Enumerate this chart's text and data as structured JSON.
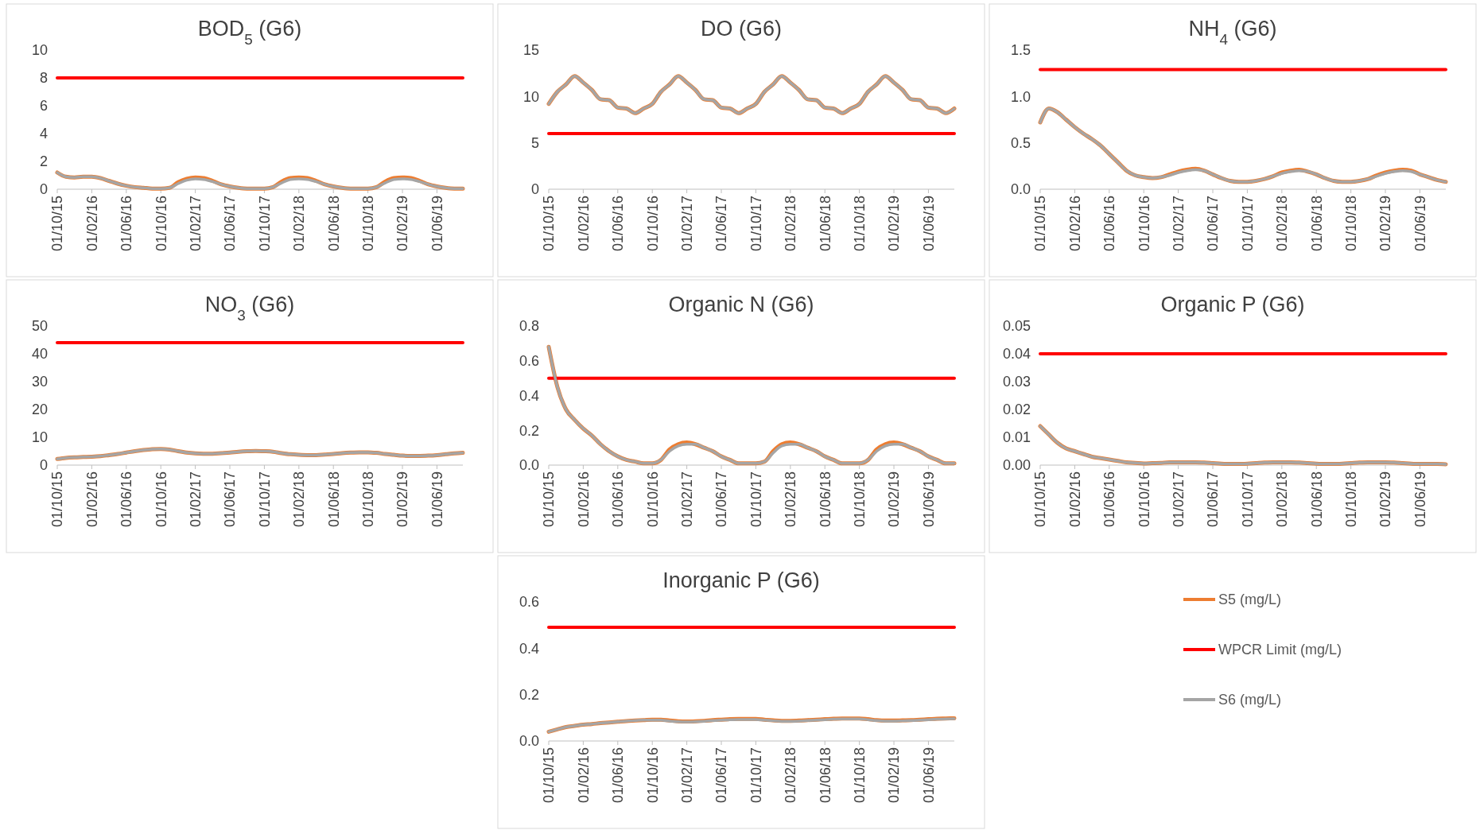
{
  "chart_data": [
    {
      "type": "line",
      "title": "BOD$_{5}$ (G6)",
      "categories": [
        "01/10/15",
        null,
        null,
        null,
        "01/02/16",
        null,
        null,
        null,
        "01/06/16",
        null,
        null,
        null,
        "01/10/16",
        null,
        null,
        null,
        "01/02/17",
        null,
        null,
        null,
        "01/06/17",
        null,
        null,
        null,
        "01/10/17",
        null,
        null,
        null,
        "01/02/18",
        null,
        null,
        null,
        "01/06/18",
        null,
        null,
        null,
        "01/10/18",
        null,
        null,
        null,
        "01/02/19",
        null,
        null,
        null,
        "01/06/19",
        null,
        null,
        null
      ],
      "ylim": [
        0,
        10
      ],
      "yticks": [
        0,
        2,
        4,
        6,
        8,
        10
      ],
      "series": [
        {
          "color": "#ed7d31",
          "values": [
            1.2,
            0.9,
            0.85,
            0.9,
            0.9,
            0.8,
            0.6,
            0.4,
            0.25,
            0.15,
            0.1,
            0.05,
            0.05,
            0.1,
            0.5,
            0.75,
            0.85,
            0.8,
            0.6,
            0.35,
            0.2,
            0.1,
            0.05,
            0.05,
            0.05,
            0.15,
            0.55,
            0.8,
            0.85,
            0.8,
            0.6,
            0.35,
            0.2,
            0.1,
            0.05,
            0.05,
            0.05,
            0.15,
            0.55,
            0.8,
            0.85,
            0.8,
            0.6,
            0.35,
            0.2,
            0.1,
            0.05,
            0.05
          ]
        },
        {
          "color": "#ff0000",
          "values": [
            8,
            8,
            8,
            8,
            8,
            8,
            8,
            8,
            8,
            8,
            8,
            8,
            8,
            8,
            8,
            8,
            8,
            8,
            8,
            8,
            8,
            8,
            8,
            8,
            8,
            8,
            8,
            8,
            8,
            8,
            8,
            8,
            8,
            8,
            8,
            8,
            8,
            8,
            8,
            8,
            8,
            8,
            8,
            8,
            8,
            8,
            8,
            8
          ]
        },
        {
          "color": "#a5a5a5",
          "values": [
            1.2,
            0.9,
            0.85,
            0.9,
            0.9,
            0.8,
            0.6,
            0.4,
            0.25,
            0.15,
            0.1,
            0.05,
            0.05,
            0.1,
            0.4,
            0.65,
            0.75,
            0.7,
            0.55,
            0.35,
            0.2,
            0.1,
            0.05,
            0.05,
            0.05,
            0.15,
            0.45,
            0.7,
            0.75,
            0.7,
            0.55,
            0.35,
            0.2,
            0.1,
            0.05,
            0.05,
            0.05,
            0.15,
            0.45,
            0.7,
            0.75,
            0.7,
            0.55,
            0.35,
            0.2,
            0.1,
            0.05,
            0.05
          ]
        }
      ]
    },
    {
      "type": "line",
      "title": "DO (G6)",
      "categories": [
        "01/10/15",
        null,
        null,
        null,
        "01/02/16",
        null,
        null,
        null,
        "01/06/16",
        null,
        null,
        null,
        "01/10/16",
        null,
        null,
        null,
        "01/02/17",
        null,
        null,
        null,
        "01/06/17",
        null,
        null,
        null,
        "01/10/17",
        null,
        null,
        null,
        "01/02/18",
        null,
        null,
        null,
        "01/06/18",
        null,
        null,
        null,
        "01/10/18",
        null,
        null,
        null,
        "01/02/19",
        null,
        null,
        null,
        "01/06/19",
        null,
        null,
        null
      ],
      "ylim": [
        0,
        15
      ],
      "yticks": [
        0,
        5,
        10,
        15
      ],
      "series": [
        {
          "color": "#ed7d31",
          "values": [
            9.2,
            10.5,
            11.3,
            12.2,
            11.5,
            10.7,
            9.7,
            9.6,
            8.8,
            8.7,
            8.2,
            8.7,
            9.2,
            10.5,
            11.3,
            12.2,
            11.5,
            10.7,
            9.7,
            9.6,
            8.8,
            8.7,
            8.2,
            8.7,
            9.2,
            10.5,
            11.3,
            12.2,
            11.5,
            10.7,
            9.7,
            9.6,
            8.8,
            8.7,
            8.2,
            8.7,
            9.2,
            10.5,
            11.3,
            12.2,
            11.5,
            10.7,
            9.7,
            9.6,
            8.8,
            8.7,
            8.2,
            8.7
          ]
        },
        {
          "color": "#ff0000",
          "values": [
            6,
            6,
            6,
            6,
            6,
            6,
            6,
            6,
            6,
            6,
            6,
            6,
            6,
            6,
            6,
            6,
            6,
            6,
            6,
            6,
            6,
            6,
            6,
            6,
            6,
            6,
            6,
            6,
            6,
            6,
            6,
            6,
            6,
            6,
            6,
            6,
            6,
            6,
            6,
            6,
            6,
            6,
            6,
            6,
            6,
            6,
            6,
            6
          ]
        },
        {
          "color": "#a5a5a5",
          "values": [
            9.2,
            10.5,
            11.3,
            12.2,
            11.5,
            10.7,
            9.7,
            9.6,
            8.8,
            8.7,
            8.2,
            8.7,
            9.2,
            10.5,
            11.3,
            12.2,
            11.5,
            10.7,
            9.7,
            9.6,
            8.8,
            8.7,
            8.2,
            8.7,
            9.2,
            10.5,
            11.3,
            12.2,
            11.5,
            10.7,
            9.7,
            9.6,
            8.8,
            8.7,
            8.2,
            8.7,
            9.2,
            10.5,
            11.3,
            12.2,
            11.5,
            10.7,
            9.7,
            9.6,
            8.8,
            8.7,
            8.2,
            8.7
          ]
        }
      ]
    },
    {
      "type": "line",
      "title": "NH$_{4}$ (G6)",
      "categories": [
        "01/10/15",
        null,
        null,
        null,
        "01/02/16",
        null,
        null,
        null,
        "01/06/16",
        null,
        null,
        null,
        "01/10/16",
        null,
        null,
        null,
        "01/02/17",
        null,
        null,
        null,
        "01/06/17",
        null,
        null,
        null,
        "01/10/17",
        null,
        null,
        null,
        "01/02/18",
        null,
        null,
        null,
        "01/06/18",
        null,
        null,
        null,
        "01/10/18",
        null,
        null,
        null,
        "01/02/19",
        null,
        null,
        null,
        "01/06/19",
        null,
        null,
        null
      ],
      "ylim": [
        0,
        1.5
      ],
      "yticks": [
        {
          "value": 0,
          "label": "0.0"
        },
        {
          "value": 0.5,
          "label": "0.5"
        },
        {
          "value": 1,
          "label": "1.0"
        },
        {
          "value": 1.5,
          "label": "1.5"
        }
      ],
      "series": [
        {
          "color": "#ed7d31",
          "values": [
            0.72,
            0.87,
            0.83,
            0.75,
            0.67,
            0.6,
            0.54,
            0.47,
            0.38,
            0.29,
            0.2,
            0.15,
            0.13,
            0.12,
            0.13,
            0.16,
            0.19,
            0.21,
            0.22,
            0.2,
            0.16,
            0.12,
            0.09,
            0.08,
            0.08,
            0.09,
            0.11,
            0.14,
            0.18,
            0.2,
            0.21,
            0.19,
            0.16,
            0.12,
            0.09,
            0.08,
            0.08,
            0.09,
            0.11,
            0.15,
            0.18,
            0.2,
            0.21,
            0.2,
            0.16,
            0.13,
            0.1,
            0.08
          ]
        },
        {
          "color": "#ff0000",
          "values": [
            1.29,
            1.29,
            1.29,
            1.29,
            1.29,
            1.29,
            1.29,
            1.29,
            1.29,
            1.29,
            1.29,
            1.29,
            1.29,
            1.29,
            1.29,
            1.29,
            1.29,
            1.29,
            1.29,
            1.29,
            1.29,
            1.29,
            1.29,
            1.29,
            1.29,
            1.29,
            1.29,
            1.29,
            1.29,
            1.29,
            1.29,
            1.29,
            1.29,
            1.29,
            1.29,
            1.29,
            1.29,
            1.29,
            1.29,
            1.29,
            1.29,
            1.29,
            1.29,
            1.29,
            1.29,
            1.29,
            1.29,
            1.29
          ]
        },
        {
          "color": "#a5a5a5",
          "values": [
            0.72,
            0.87,
            0.83,
            0.75,
            0.67,
            0.6,
            0.54,
            0.47,
            0.38,
            0.29,
            0.2,
            0.15,
            0.13,
            0.12,
            0.13,
            0.15,
            0.18,
            0.2,
            0.21,
            0.2,
            0.16,
            0.12,
            0.09,
            0.08,
            0.08,
            0.09,
            0.11,
            0.14,
            0.17,
            0.19,
            0.2,
            0.19,
            0.16,
            0.12,
            0.09,
            0.08,
            0.08,
            0.09,
            0.11,
            0.14,
            0.17,
            0.19,
            0.2,
            0.19,
            0.16,
            0.13,
            0.1,
            0.08
          ]
        }
      ]
    },
    {
      "type": "line",
      "title": "NO$_{3}$ (G6)",
      "categories": [
        "01/10/15",
        null,
        null,
        null,
        "01/02/16",
        null,
        null,
        null,
        "01/06/16",
        null,
        null,
        null,
        "01/10/16",
        null,
        null,
        null,
        "01/02/17",
        null,
        null,
        null,
        "01/06/17",
        null,
        null,
        null,
        "01/10/17",
        null,
        null,
        null,
        "01/02/18",
        null,
        null,
        null,
        "01/06/18",
        null,
        null,
        null,
        "01/10/18",
        null,
        null,
        null,
        "01/02/19",
        null,
        null,
        null,
        "01/06/19",
        null,
        null,
        null
      ],
      "ylim": [
        0,
        50
      ],
      "yticks": [
        0,
        10,
        20,
        30,
        40,
        50
      ],
      "series": [
        {
          "color": "#ed7d31",
          "values": [
            2.2,
            2.6,
            2.8,
            2.9,
            3.0,
            3.2,
            3.6,
            4.0,
            4.5,
            5.0,
            5.4,
            5.7,
            5.8,
            5.6,
            5.0,
            4.5,
            4.2,
            4.1,
            4.1,
            4.3,
            4.5,
            4.8,
            5.0,
            5.1,
            5.0,
            4.8,
            4.3,
            3.9,
            3.7,
            3.6,
            3.6,
            3.8,
            4.0,
            4.3,
            4.5,
            4.6,
            4.6,
            4.4,
            4.0,
            3.7,
            3.4,
            3.3,
            3.3,
            3.4,
            3.6,
            3.9,
            4.2,
            4.4
          ]
        },
        {
          "color": "#ff0000",
          "values": [
            44,
            44,
            44,
            44,
            44,
            44,
            44,
            44,
            44,
            44,
            44,
            44,
            44,
            44,
            44,
            44,
            44,
            44,
            44,
            44,
            44,
            44,
            44,
            44,
            44,
            44,
            44,
            44,
            44,
            44,
            44,
            44,
            44,
            44,
            44,
            44,
            44,
            44,
            44,
            44,
            44,
            44,
            44,
            44,
            44,
            44,
            44,
            44
          ]
        },
        {
          "color": "#a5a5a5",
          "values": [
            2.2,
            2.6,
            2.8,
            2.9,
            3.0,
            3.2,
            3.6,
            4.0,
            4.5,
            5.0,
            5.4,
            5.7,
            5.8,
            5.6,
            5.0,
            4.5,
            4.2,
            4.1,
            4.1,
            4.3,
            4.5,
            4.8,
            5.0,
            5.1,
            5.0,
            4.8,
            4.3,
            3.9,
            3.7,
            3.6,
            3.6,
            3.8,
            4.0,
            4.3,
            4.5,
            4.6,
            4.6,
            4.4,
            4.0,
            3.7,
            3.4,
            3.3,
            3.3,
            3.4,
            3.6,
            3.9,
            4.2,
            4.4
          ]
        }
      ]
    },
    {
      "type": "line",
      "title": "Organic N (G6)",
      "categories": [
        "01/10/15",
        null,
        null,
        null,
        "01/02/16",
        null,
        null,
        null,
        "01/06/16",
        null,
        null,
        null,
        "01/10/16",
        null,
        null,
        null,
        "01/02/17",
        null,
        null,
        null,
        "01/06/17",
        null,
        null,
        null,
        "01/10/17",
        null,
        null,
        null,
        "01/02/18",
        null,
        null,
        null,
        "01/06/18",
        null,
        null,
        null,
        "01/10/18",
        null,
        null,
        null,
        "01/02/19",
        null,
        null,
        null,
        "01/06/19",
        null,
        null,
        null
      ],
      "ylim": [
        0,
        0.8
      ],
      "yticks": [
        {
          "value": 0,
          "label": "0.0"
        },
        {
          "value": 0.2,
          "label": "0.2"
        },
        {
          "value": 0.4,
          "label": "0.4"
        },
        {
          "value": 0.6,
          "label": "0.6"
        },
        {
          "value": 0.8,
          "label": "0.8"
        }
      ],
      "series": [
        {
          "color": "#ed7d31",
          "values": [
            0.68,
            0.45,
            0.32,
            0.26,
            0.21,
            0.17,
            0.12,
            0.08,
            0.05,
            0.03,
            0.02,
            0.01,
            0.01,
            0.03,
            0.09,
            0.12,
            0.13,
            0.12,
            0.1,
            0.08,
            0.05,
            0.03,
            0.01,
            0.01,
            0.01,
            0.02,
            0.08,
            0.12,
            0.13,
            0.12,
            0.1,
            0.08,
            0.05,
            0.03,
            0.01,
            0.01,
            0.01,
            0.03,
            0.09,
            0.12,
            0.13,
            0.12,
            0.1,
            0.08,
            0.05,
            0.03,
            0.01,
            0.01
          ]
        },
        {
          "color": "#ff0000",
          "values": [
            0.5,
            0.5,
            0.5,
            0.5,
            0.5,
            0.5,
            0.5,
            0.5,
            0.5,
            0.5,
            0.5,
            0.5,
            0.5,
            0.5,
            0.5,
            0.5,
            0.5,
            0.5,
            0.5,
            0.5,
            0.5,
            0.5,
            0.5,
            0.5,
            0.5,
            0.5,
            0.5,
            0.5,
            0.5,
            0.5,
            0.5,
            0.5,
            0.5,
            0.5,
            0.5,
            0.5,
            0.5,
            0.5,
            0.5,
            0.5,
            0.5,
            0.5,
            0.5,
            0.5,
            0.5,
            0.5,
            0.5,
            0.5
          ]
        },
        {
          "color": "#a5a5a5",
          "values": [
            0.68,
            0.45,
            0.32,
            0.26,
            0.21,
            0.17,
            0.12,
            0.08,
            0.05,
            0.03,
            0.02,
            0.01,
            0.01,
            0.03,
            0.08,
            0.11,
            0.12,
            0.12,
            0.1,
            0.08,
            0.05,
            0.03,
            0.01,
            0.01,
            0.01,
            0.02,
            0.07,
            0.11,
            0.12,
            0.12,
            0.1,
            0.08,
            0.05,
            0.03,
            0.01,
            0.01,
            0.01,
            0.03,
            0.08,
            0.11,
            0.12,
            0.12,
            0.1,
            0.08,
            0.05,
            0.03,
            0.01,
            0.01
          ]
        }
      ]
    },
    {
      "type": "line",
      "title": "Organic P (G6)",
      "categories": [
        "01/10/15",
        null,
        null,
        null,
        "01/02/16",
        null,
        null,
        null,
        "01/06/16",
        null,
        null,
        null,
        "01/10/16",
        null,
        null,
        null,
        "01/02/17",
        null,
        null,
        null,
        "01/06/17",
        null,
        null,
        null,
        "01/10/17",
        null,
        null,
        null,
        "01/02/18",
        null,
        null,
        null,
        "01/06/18",
        null,
        null,
        null,
        "01/10/18",
        null,
        null,
        null,
        "01/02/19",
        null,
        null,
        null,
        "01/06/19",
        null,
        null,
        null
      ],
      "ylim": [
        0,
        0.05
      ],
      "yticks": [
        {
          "value": 0,
          "label": "0.00"
        },
        {
          "value": 0.01,
          "label": "0.01"
        },
        {
          "value": 0.02,
          "label": "0.02"
        },
        {
          "value": 0.03,
          "label": "0.03"
        },
        {
          "value": 0.04,
          "label": "0.04"
        },
        {
          "value": 0.05,
          "label": "0.05"
        }
      ],
      "series": [
        {
          "color": "#ed7d31",
          "values": [
            0.014,
            0.011,
            0.008,
            0.006,
            0.005,
            0.004,
            0.003,
            0.0025,
            0.002,
            0.0015,
            0.001,
            0.0008,
            0.0006,
            0.0007,
            0.0008,
            0.001,
            0.001,
            0.001,
            0.001,
            0.0009,
            0.0007,
            0.0005,
            0.0004,
            0.0004,
            0.0005,
            0.0007,
            0.0009,
            0.001,
            0.001,
            0.001,
            0.0009,
            0.0007,
            0.0005,
            0.0004,
            0.0004,
            0.0005,
            0.0007,
            0.0009,
            0.001,
            0.001,
            0.001,
            0.0009,
            0.0007,
            0.0005,
            0.0004,
            0.0004,
            0.0004,
            0.0003
          ]
        },
        {
          "color": "#ff0000",
          "values": [
            0.04,
            0.04,
            0.04,
            0.04,
            0.04,
            0.04,
            0.04,
            0.04,
            0.04,
            0.04,
            0.04,
            0.04,
            0.04,
            0.04,
            0.04,
            0.04,
            0.04,
            0.04,
            0.04,
            0.04,
            0.04,
            0.04,
            0.04,
            0.04,
            0.04,
            0.04,
            0.04,
            0.04,
            0.04,
            0.04,
            0.04,
            0.04,
            0.04,
            0.04,
            0.04,
            0.04,
            0.04,
            0.04,
            0.04,
            0.04,
            0.04,
            0.04,
            0.04,
            0.04,
            0.04,
            0.04,
            0.04,
            0.04
          ]
        },
        {
          "color": "#a5a5a5",
          "values": [
            0.014,
            0.011,
            0.008,
            0.006,
            0.005,
            0.004,
            0.003,
            0.0025,
            0.002,
            0.0015,
            0.001,
            0.0008,
            0.0006,
            0.0007,
            0.0008,
            0.001,
            0.001,
            0.001,
            0.001,
            0.0009,
            0.0007,
            0.0005,
            0.0004,
            0.0004,
            0.0005,
            0.0007,
            0.0009,
            0.001,
            0.001,
            0.001,
            0.0009,
            0.0007,
            0.0005,
            0.0004,
            0.0004,
            0.0005,
            0.0007,
            0.0009,
            0.001,
            0.001,
            0.001,
            0.0009,
            0.0007,
            0.0005,
            0.0004,
            0.0004,
            0.0004,
            0.0003
          ]
        }
      ]
    },
    {
      "type": "line",
      "title": "Inorganic P (G6)",
      "legend": "right",
      "categories": [
        "01/10/15",
        null,
        null,
        null,
        "01/02/16",
        null,
        null,
        null,
        "01/06/16",
        null,
        null,
        null,
        "01/10/16",
        null,
        null,
        null,
        "01/02/17",
        null,
        null,
        null,
        "01/06/17",
        null,
        null,
        null,
        "01/10/17",
        null,
        null,
        null,
        "01/02/18",
        null,
        null,
        null,
        "01/06/18",
        null,
        null,
        null,
        "01/10/18",
        null,
        null,
        null,
        "01/02/19",
        null,
        null,
        null,
        "01/06/19",
        null,
        null,
        null
      ],
      "ylim": [
        0,
        0.6
      ],
      "yticks": [
        {
          "value": 0,
          "label": "0.0"
        },
        {
          "value": 0.2,
          "label": "0.2"
        },
        {
          "value": 0.4,
          "label": "0.4"
        },
        {
          "value": 0.6,
          "label": "0.6"
        }
      ],
      "series": [
        {
          "name": "S5 (mg/L)",
          "color": "#ed7d31",
          "values": [
            0.04,
            0.05,
            0.06,
            0.065,
            0.07,
            0.073,
            0.077,
            0.08,
            0.083,
            0.086,
            0.088,
            0.09,
            0.092,
            0.092,
            0.088,
            0.085,
            0.084,
            0.085,
            0.087,
            0.09,
            0.092,
            0.094,
            0.095,
            0.095,
            0.095,
            0.092,
            0.089,
            0.087,
            0.087,
            0.088,
            0.09,
            0.092,
            0.094,
            0.096,
            0.097,
            0.097,
            0.097,
            0.094,
            0.09,
            0.088,
            0.088,
            0.089,
            0.09,
            0.092,
            0.094,
            0.096,
            0.097,
            0.098
          ]
        },
        {
          "name": "WPCR Limit (mg/L)",
          "color": "#ff0000",
          "values": [
            0.49,
            0.49,
            0.49,
            0.49,
            0.49,
            0.49,
            0.49,
            0.49,
            0.49,
            0.49,
            0.49,
            0.49,
            0.49,
            0.49,
            0.49,
            0.49,
            0.49,
            0.49,
            0.49,
            0.49,
            0.49,
            0.49,
            0.49,
            0.49,
            0.49,
            0.49,
            0.49,
            0.49,
            0.49,
            0.49,
            0.49,
            0.49,
            0.49,
            0.49,
            0.49,
            0.49,
            0.49,
            0.49,
            0.49,
            0.49,
            0.49,
            0.49,
            0.49,
            0.49,
            0.49,
            0.49,
            0.49,
            0.49
          ]
        },
        {
          "name": "S6 (mg/L)",
          "color": "#a5a5a5",
          "values": [
            0.04,
            0.05,
            0.06,
            0.065,
            0.07,
            0.073,
            0.077,
            0.08,
            0.083,
            0.086,
            0.088,
            0.09,
            0.09,
            0.09,
            0.086,
            0.083,
            0.082,
            0.083,
            0.085,
            0.088,
            0.09,
            0.092,
            0.093,
            0.093,
            0.093,
            0.09,
            0.087,
            0.085,
            0.085,
            0.086,
            0.088,
            0.09,
            0.092,
            0.094,
            0.095,
            0.095,
            0.095,
            0.092,
            0.088,
            0.086,
            0.086,
            0.087,
            0.088,
            0.09,
            0.092,
            0.094,
            0.095,
            0.096
          ]
        }
      ]
    }
  ]
}
